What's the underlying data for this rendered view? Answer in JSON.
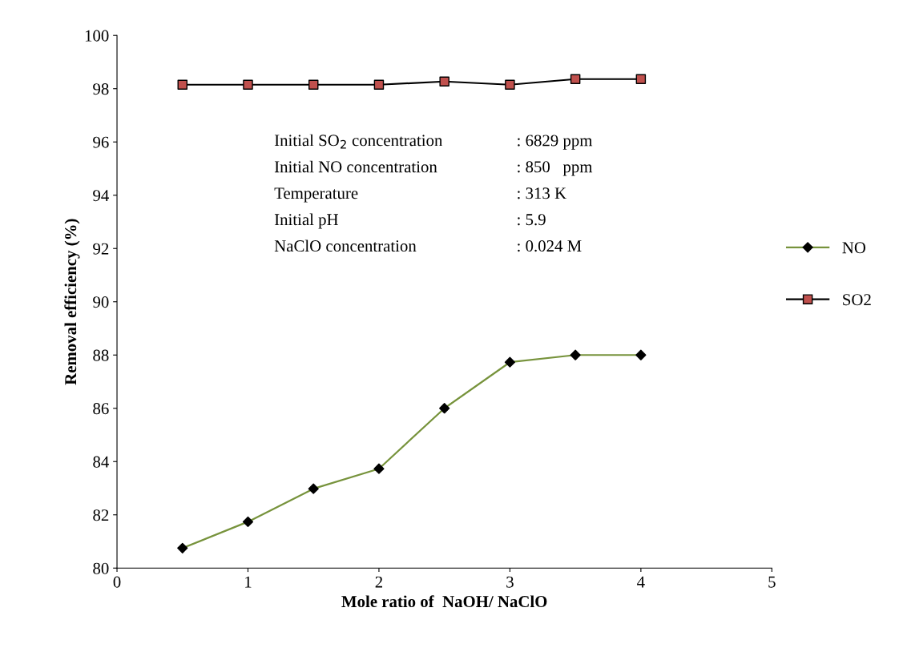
{
  "chart_data": {
    "type": "line",
    "xlabel": "Mole ratio of  NaOH/ NaClO",
    "ylabel": "Removal efficiency (%)",
    "x": [
      0.5,
      1,
      1.5,
      2,
      2.5,
      3,
      3.5,
      4
    ],
    "series": [
      {
        "name": "NO",
        "color": "#77933c",
        "colors": [
          "#000000",
          "#000000",
          "#000000",
          "#000000",
          "#000000",
          "#000000",
          "#000000",
          "#000000"
        ],
        "marker": "diamond",
        "values": [
          80.75,
          81.74,
          82.98,
          83.73,
          86.0,
          87.73,
          88.0,
          88.0
        ]
      },
      {
        "name": "SO2",
        "color": "#000000",
        "colors": [
          "#c0504d",
          "#c0504d",
          "#c0504d",
          "#c0504d",
          "#c0504d",
          "#c0504d",
          "#c0504d",
          "#c0504d"
        ],
        "marker": "square",
        "values": [
          98.15,
          98.15,
          98.15,
          98.15,
          98.27,
          98.15,
          98.36,
          98.36
        ]
      }
    ],
    "xlim": [
      0,
      5
    ],
    "xticks": [
      0,
      1,
      2,
      3,
      4,
      5
    ],
    "ylim": [
      80,
      100
    ],
    "yticks": [
      80,
      82,
      84,
      86,
      88,
      90,
      92,
      94,
      96,
      98,
      100
    ],
    "grid": false,
    "legend": "right",
    "annotations": [
      "Initial SO$_{2}$ concentration",
      ": 6829 ppm",
      "Initial NO concentration",
      ": 850   ppm",
      "Temperature",
      ": 313 K",
      "Initial pH",
      ": 5.9",
      "NaClO concentration",
      ": 0.024 M"
    ]
  }
}
